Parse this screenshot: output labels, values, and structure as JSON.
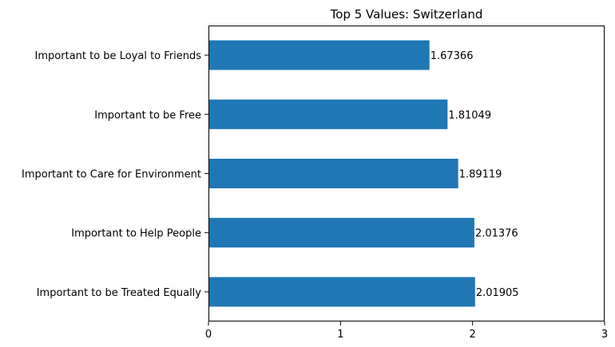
{
  "chart_data": {
    "type": "bar",
    "orientation": "horizontal",
    "title": "Top 5 Values: Switzerland",
    "xlabel": "",
    "ylabel": "",
    "xlim": [
      0,
      3
    ],
    "x_ticks": [
      0,
      1,
      2,
      3
    ],
    "grid": false,
    "bar_color": "#1f77b4",
    "categories": [
      "Important to be Loyal to Friends",
      "Important to be Free",
      "Important to Care for Environment",
      "Important to Help People",
      "Important to be Treated Equally"
    ],
    "values": [
      1.67366,
      1.81049,
      1.89119,
      2.01376,
      2.01905
    ],
    "value_labels": [
      "1.67366",
      "1.81049",
      "1.89119",
      "2.01376",
      "2.01905"
    ]
  }
}
